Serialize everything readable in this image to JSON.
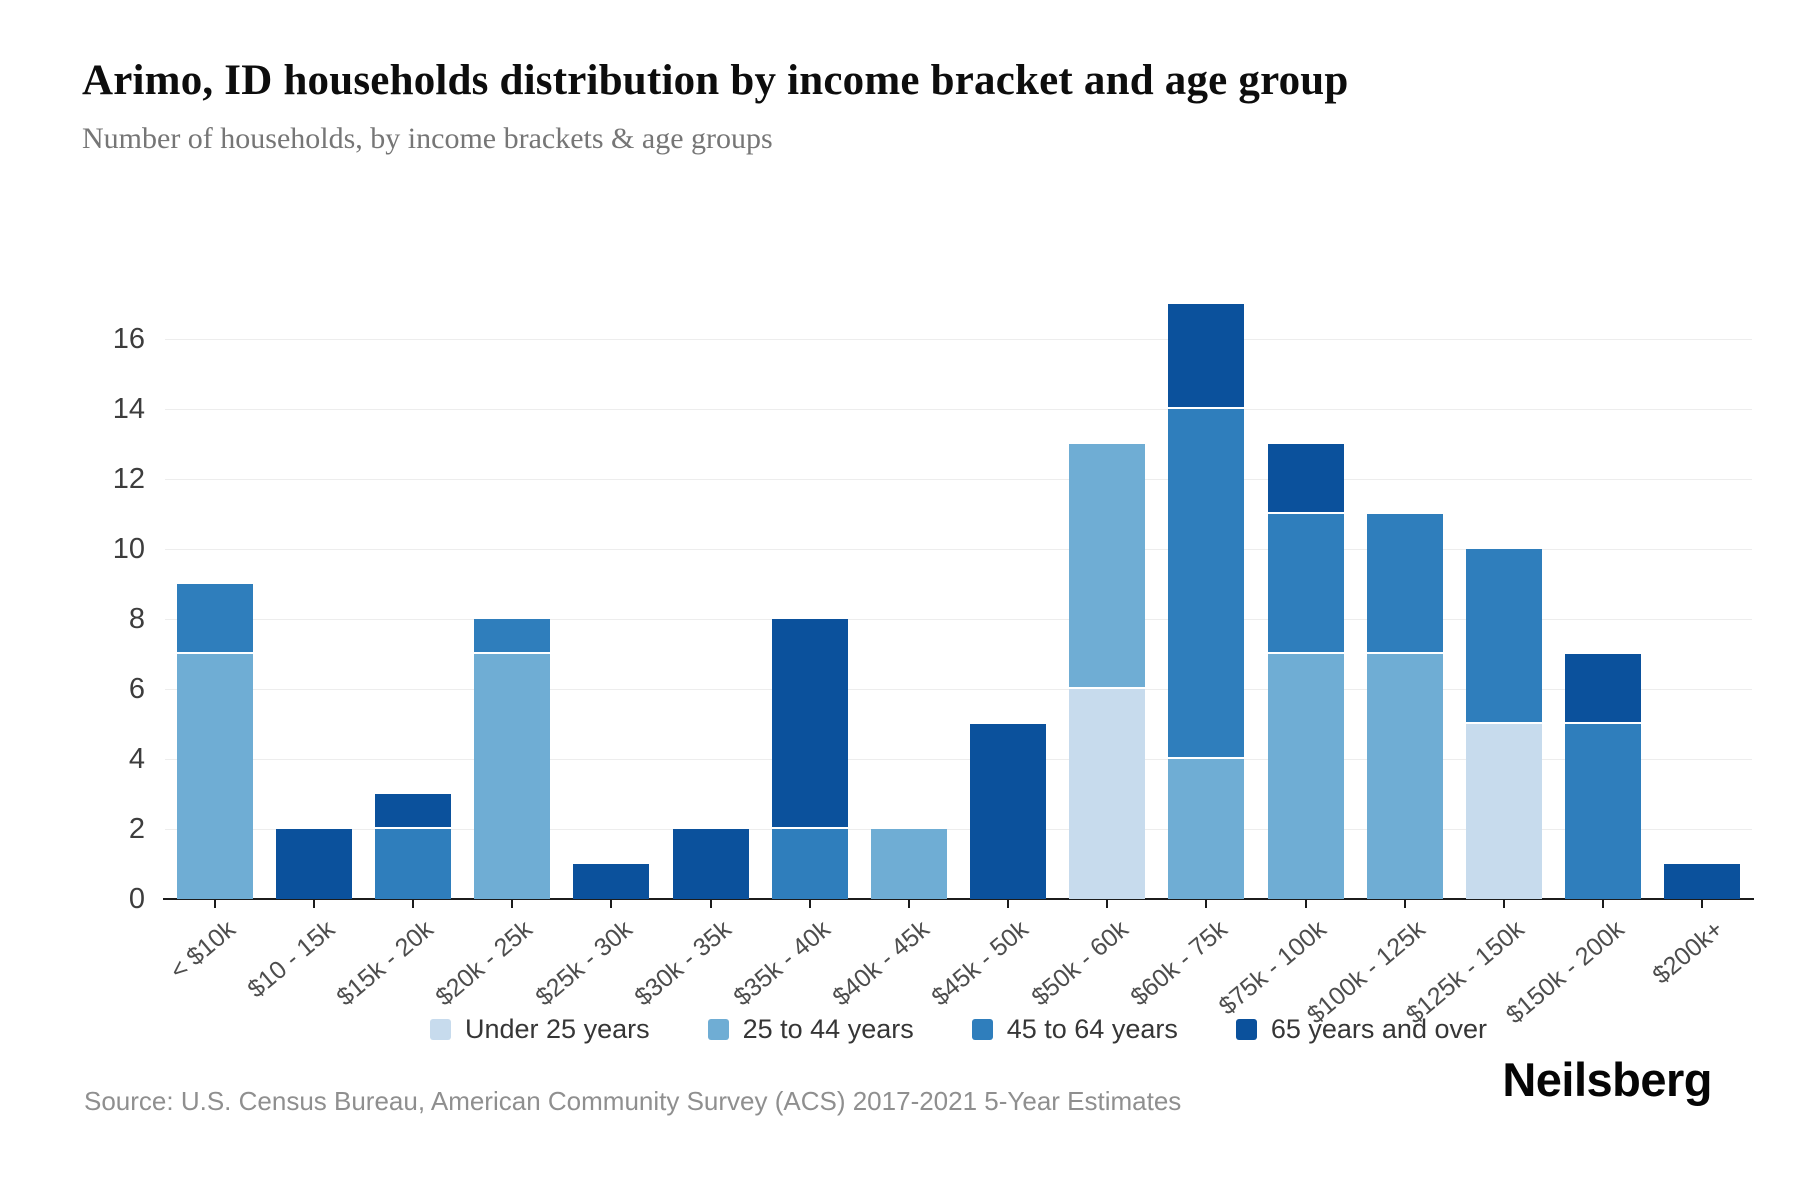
{
  "header": {
    "title": "Arimo, ID households distribution by income bracket and age group",
    "subtitle": "Number of households, by income brackets & age groups"
  },
  "chart_data": {
    "type": "bar",
    "stacked": true,
    "title": "Arimo, ID households distribution by income bracket and age group",
    "subtitle": "Number of households, by income brackets & age groups",
    "xlabel": "",
    "ylabel": "",
    "categories": [
      "< $10k",
      "$10 - 15k",
      "$15k - 20k",
      "$20k - 25k",
      "$25k - 30k",
      "$30k - 35k",
      "$35k - 40k",
      "$40k - 45k",
      "$45k - 50k",
      "$50k - 60k",
      "$60k - 75k",
      "$75k - 100k",
      "$100k - 125k",
      "$125k - 150k",
      "$150k - 200k",
      "$200k+"
    ],
    "series": [
      {
        "name": "Under 25 years",
        "color": "#c7dbed",
        "values": [
          0,
          0,
          0,
          0,
          0,
          0,
          0,
          0,
          0,
          6,
          0,
          0,
          0,
          5,
          0,
          0
        ]
      },
      {
        "name": "25 to 44 years",
        "color": "#6fadd4",
        "values": [
          7,
          0,
          0,
          7,
          0,
          0,
          0,
          2,
          0,
          7,
          4,
          7,
          7,
          0,
          0,
          0
        ]
      },
      {
        "name": "45 to 64 years",
        "color": "#2f7ebc",
        "values": [
          2,
          0,
          2,
          1,
          0,
          0,
          2,
          0,
          0,
          0,
          10,
          4,
          4,
          5,
          5,
          0
        ]
      },
      {
        "name": "65 years and over",
        "color": "#0b519c",
        "values": [
          0,
          2,
          1,
          0,
          1,
          2,
          6,
          0,
          5,
          0,
          3,
          2,
          0,
          0,
          2,
          1
        ]
      }
    ],
    "totals": [
      9,
      2,
      3,
      8,
      1,
      2,
      8,
      2,
      5,
      13,
      17,
      13,
      11,
      10,
      7,
      1
    ],
    "ylim": [
      0,
      17
    ],
    "yticks": [
      0,
      2,
      4,
      6,
      8,
      10,
      12,
      14,
      16
    ],
    "grid": "horizontal",
    "legend_position": "bottom"
  },
  "footer": {
    "source": "Source: U.S. Census Bureau, American Community Survey (ACS) 2017-2021 5-Year Estimates",
    "brand": "Neilsberg"
  },
  "colors": {
    "axis": "#1c1c1c",
    "gridline": "#ededed",
    "background": "#ffffff"
  }
}
